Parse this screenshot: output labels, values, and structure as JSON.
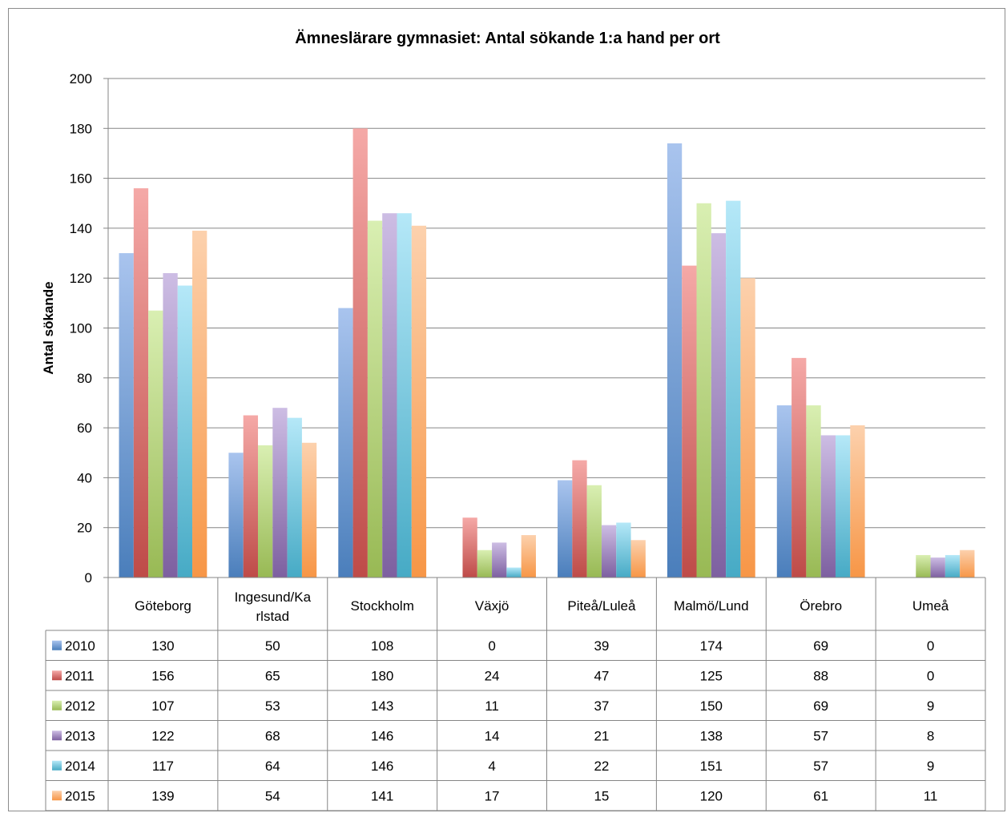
{
  "chart_data": {
    "type": "bar",
    "title": "Ämneslärare gymnasiet: Antal sökande 1:a hand per ort",
    "xlabel": "",
    "ylabel": "Antal sökande",
    "ylim": [
      0,
      200
    ],
    "yticks": [
      0,
      20,
      40,
      60,
      80,
      100,
      120,
      140,
      160,
      180,
      200
    ],
    "grid": true,
    "legend": "data-table",
    "categories": [
      "Göteborg",
      [
        "Ingesund/Ka",
        "rlstad"
      ],
      "Stockholm",
      "Växjö",
      "Piteå/Luleå",
      "Malmö/Lund",
      "Örebro",
      "Umeå"
    ],
    "series": [
      {
        "name": "2010",
        "color": "#4a7ebb",
        "light": "#a9c4ee",
        "values": [
          130,
          50,
          108,
          0,
          39,
          174,
          69,
          0
        ]
      },
      {
        "name": "2011",
        "color": "#be4b48",
        "light": "#f5a9a7",
        "values": [
          156,
          65,
          180,
          24,
          47,
          125,
          88,
          0
        ]
      },
      {
        "name": "2012",
        "color": "#98b954",
        "light": "#d9efb2",
        "values": [
          107,
          53,
          143,
          11,
          37,
          150,
          69,
          9
        ]
      },
      {
        "name": "2013",
        "color": "#7d60a0",
        "light": "#cdbde4",
        "values": [
          122,
          68,
          146,
          14,
          21,
          138,
          57,
          8
        ]
      },
      {
        "name": "2014",
        "color": "#46aac5",
        "light": "#b5e8f8",
        "values": [
          117,
          64,
          146,
          4,
          22,
          151,
          57,
          9
        ]
      },
      {
        "name": "2015",
        "color": "#f79646",
        "light": "#fcd1ad",
        "values": [
          139,
          54,
          141,
          17,
          15,
          120,
          61,
          11
        ]
      }
    ]
  }
}
